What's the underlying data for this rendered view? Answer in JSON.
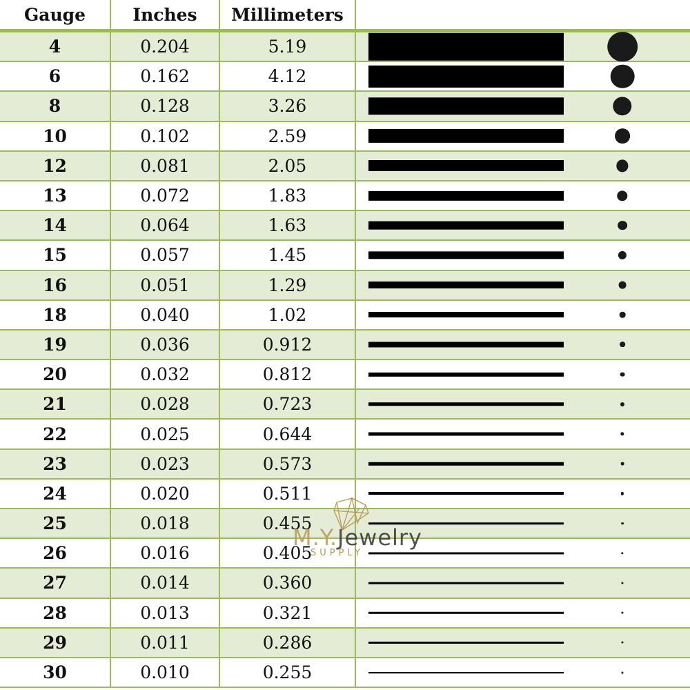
{
  "header": {
    "gauge": "Gauge",
    "inches": "Inches",
    "millimeters": "Millimeters",
    "visual": ""
  },
  "colors": {
    "border": "#9bbb59",
    "row_alt": "#e4ecd6",
    "mark": "#000000"
  },
  "rows": [
    {
      "gauge": "4",
      "inches": "0.204",
      "mm": "5.19"
    },
    {
      "gauge": "6",
      "inches": "0.162",
      "mm": "4.12"
    },
    {
      "gauge": "8",
      "inches": "0.128",
      "mm": "3.26"
    },
    {
      "gauge": "10",
      "inches": "0.102",
      "mm": "2.59"
    },
    {
      "gauge": "12",
      "inches": "0.081",
      "mm": "2.05"
    },
    {
      "gauge": "13",
      "inches": "0.072",
      "mm": "1.83"
    },
    {
      "gauge": "14",
      "inches": "0.064",
      "mm": "1.63"
    },
    {
      "gauge": "15",
      "inches": "0.057",
      "mm": "1.45"
    },
    {
      "gauge": "16",
      "inches": "0.051",
      "mm": "1.29"
    },
    {
      "gauge": "18",
      "inches": "0.040",
      "mm": "1.02"
    },
    {
      "gauge": "19",
      "inches": "0.036",
      "mm": "0.912"
    },
    {
      "gauge": "20",
      "inches": "0.032",
      "mm": "0.812"
    },
    {
      "gauge": "21",
      "inches": "0.028",
      "mm": "0.723"
    },
    {
      "gauge": "22",
      "inches": "0.025",
      "mm": "0.644"
    },
    {
      "gauge": "23",
      "inches": "0.023",
      "mm": "0.573"
    },
    {
      "gauge": "24",
      "inches": "0.020",
      "mm": "0.511"
    },
    {
      "gauge": "25",
      "inches": "0.018",
      "mm": "0.455"
    },
    {
      "gauge": "26",
      "inches": "0.016",
      "mm": "0.405"
    },
    {
      "gauge": "27",
      "inches": "0.014",
      "mm": "0.360"
    },
    {
      "gauge": "28",
      "inches": "0.013",
      "mm": "0.321"
    },
    {
      "gauge": "29",
      "inches": "0.011",
      "mm": "0.286"
    },
    {
      "gauge": "30",
      "inches": "0.010",
      "mm": "0.255"
    }
  ],
  "watermark": {
    "brand_prefix": "M.Y.",
    "brand_name": "Jewelry",
    "sub": "SUPPLY",
    "icon": "diamond-icon"
  }
}
